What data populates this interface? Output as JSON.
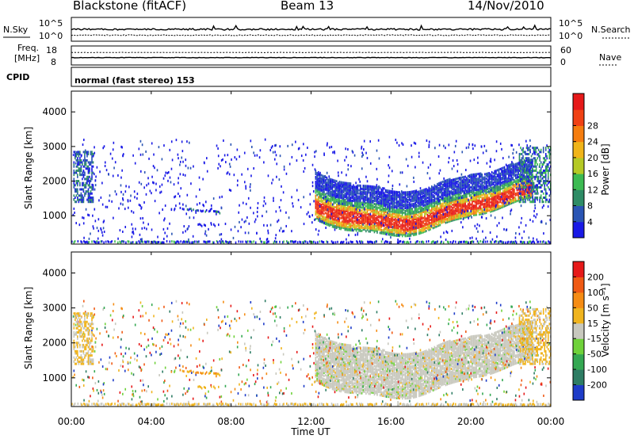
{
  "header": {
    "station": "Blackstone (fitACF)",
    "beam": "Beam 13",
    "date": "14/Nov/2010"
  },
  "noise_panel": {
    "left_label": "N.Sky",
    "right_label": "N.Search",
    "left_ticks": [
      "10^5",
      "10^0"
    ],
    "right_ticks": [
      "10^5",
      "10^0"
    ]
  },
  "freq_panel": {
    "left_label_line1": "Freq.",
    "left_label_line2": "[MHz]",
    "left_ticks": [
      "18",
      "8"
    ],
    "right_label": "Nave",
    "right_ticks": [
      "60",
      "0"
    ]
  },
  "cpid": {
    "label": "CPID",
    "text": "normal (fast stereo) 153"
  },
  "chart_data": [
    {
      "type": "heatmap",
      "panel": "power",
      "ylabel": "Slant Range [km]",
      "ylim": [
        180,
        4600
      ],
      "yticks": [
        "1000",
        "2000",
        "3000",
        "4000"
      ],
      "colorbar": {
        "label": "Power [dB]",
        "ticks": [
          "4",
          "8",
          "12",
          "16",
          "20",
          "24",
          "28"
        ],
        "range": [
          0,
          32
        ],
        "colors": [
          "#1919e6",
          "#2a55b4",
          "#2e8c66",
          "#3cba52",
          "#b5c925",
          "#f0b419",
          "#f57d0f",
          "#f04114",
          "#e61919"
        ]
      }
    },
    {
      "type": "heatmap",
      "panel": "velocity",
      "ylabel": "Slant Range [km]",
      "ylim": [
        180,
        4600
      ],
      "yticks": [
        "1000",
        "2000",
        "3000",
        "4000"
      ],
      "colorbar": {
        "label": "Velocity [m s⁻¹]",
        "ticks": [
          "200",
          "100",
          "50",
          "15",
          "-15",
          "-50",
          "-100",
          "-200"
        ],
        "colors": [
          "#1e3cc8",
          "#2e7d64",
          "#34a852",
          "#6fd23a",
          "#c8c8be",
          "#f0b41e",
          "#f58c14",
          "#f05a14",
          "#e61919"
        ]
      }
    }
  ],
  "xaxis": {
    "label": "Time UT",
    "ticks": [
      "00:00",
      "04:00",
      "08:00",
      "12:00",
      "16:00",
      "20:00",
      "00:00"
    ],
    "range_hours": [
      0,
      24
    ]
  }
}
